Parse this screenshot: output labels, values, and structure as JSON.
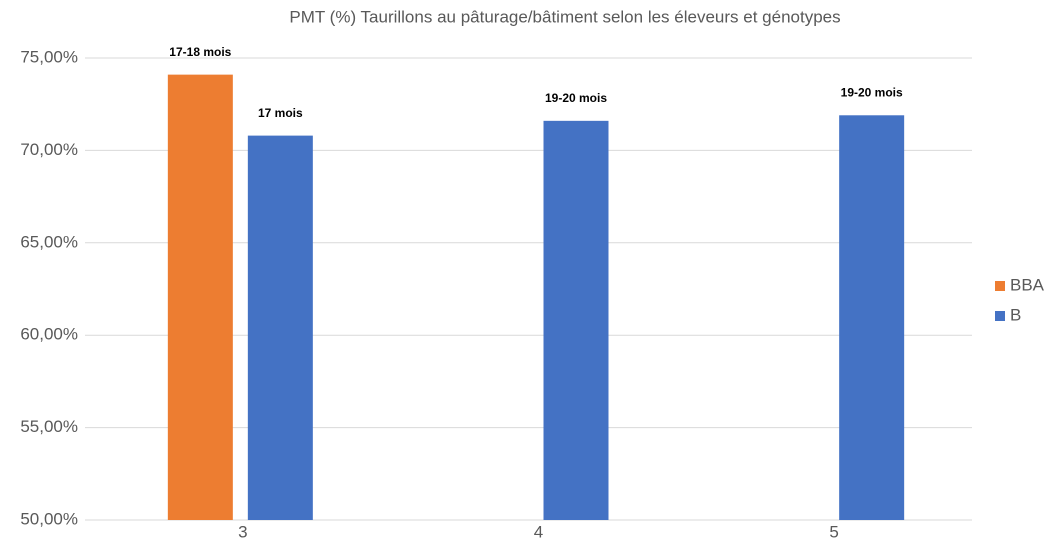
{
  "chart_data": {
    "type": "bar",
    "title": "PMT (%) Taurillons au  pâturage/bâtiment selon les éleveurs et génotypes",
    "categories": [
      "3",
      "4",
      "5"
    ],
    "series": [
      {
        "name": "BBA",
        "color": "#ed7d31",
        "values": [
          74.1,
          null,
          null
        ],
        "labels": [
          "17-18  mois",
          null,
          null
        ]
      },
      {
        "name": "B",
        "color": "#4472c4",
        "values": [
          70.8,
          71.6,
          71.9
        ],
        "labels": [
          "17 mois",
          "19-20 mois",
          "19-20 mois"
        ]
      }
    ],
    "ylim": [
      50,
      75
    ],
    "yticks": [
      {
        "value": 50,
        "label": "50,00%"
      },
      {
        "value": 55,
        "label": "55,00%"
      },
      {
        "value": 60,
        "label": "60,00%"
      },
      {
        "value": 65,
        "label": "65,00%"
      },
      {
        "value": 70,
        "label": "70,00%"
      },
      {
        "value": 75,
        "label": "75,00%"
      }
    ],
    "grid": true,
    "legend": "right"
  }
}
